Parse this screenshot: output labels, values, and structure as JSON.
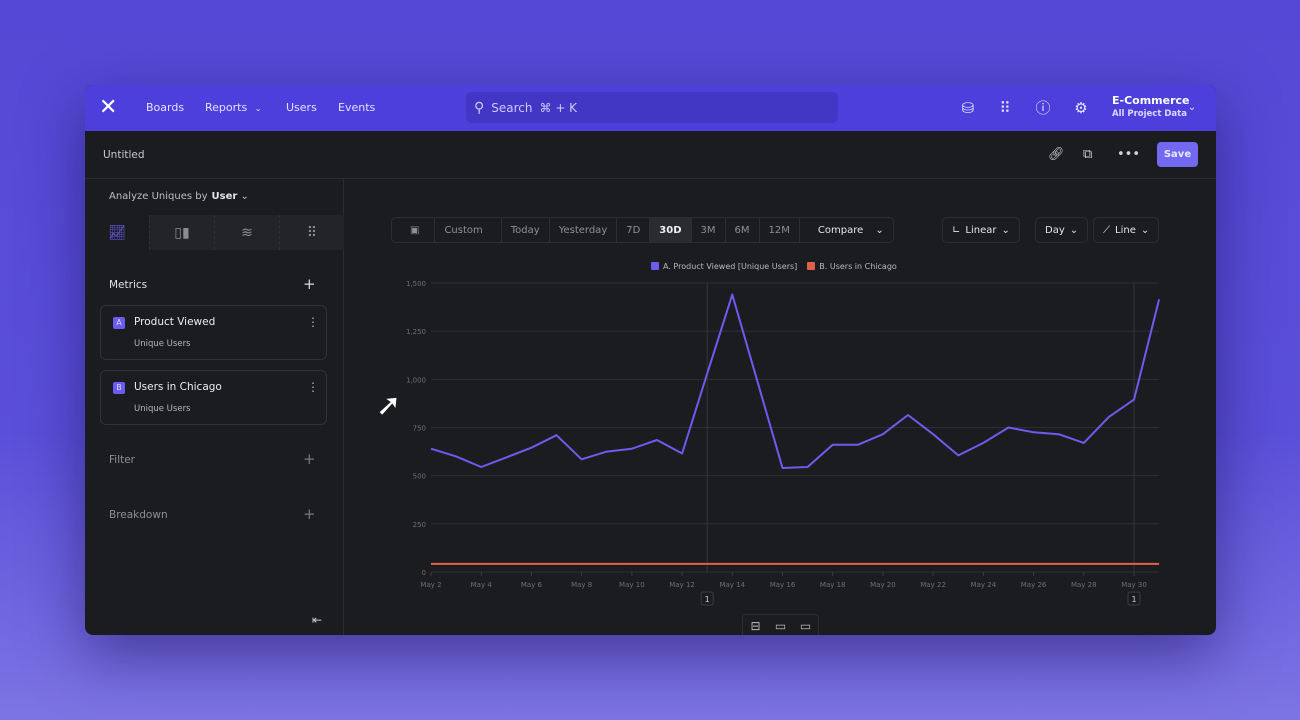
{
  "header": {
    "nav": [
      {
        "label": "Boards"
      },
      {
        "label": "Reports"
      },
      {
        "label": "Users"
      },
      {
        "label": "Events"
      }
    ],
    "search_placeholder": "Search",
    "search_shortcut": "⌘ + K",
    "project": {
      "name": "E-Commerce",
      "scope": "All Project Data"
    }
  },
  "report": {
    "title": "Untitled",
    "save_label": "Save"
  },
  "sidebar": {
    "analyze_label": "Analyze Uniques by",
    "analyze_value": "User",
    "metrics_label": "Metrics",
    "metrics": [
      {
        "letter": "A",
        "name": "Product Viewed",
        "measure": "Unique Users"
      },
      {
        "letter": "B",
        "name": "Users in Chicago",
        "measure": "Unique Users"
      }
    ],
    "filter_label": "Filter",
    "breakdown_label": "Breakdown"
  },
  "toolbar": {
    "custom": "Custom",
    "ranges": [
      "Today",
      "Yesterday",
      "7D",
      "30D",
      "3M",
      "6M",
      "12M"
    ],
    "selected_range": "30D",
    "compare": "Compare",
    "scale": "Linear",
    "interval": "Day",
    "chart_type": "Line"
  },
  "chart_data": {
    "type": "line",
    "x": [
      "May 1",
      "May 2",
      "May 3",
      "May 4",
      "May 5",
      "May 6",
      "May 7",
      "May 8",
      "May 9",
      "May 10",
      "May 11",
      "May 12",
      "May 13",
      "May 14",
      "May 15",
      "May 16",
      "May 17",
      "May 18",
      "May 19",
      "May 20",
      "May 21",
      "May 22",
      "May 23",
      "May 24",
      "May 25",
      "May 26",
      "May 27",
      "May 28",
      "May 29",
      "May 30",
      "May 31"
    ],
    "x_tick_labels": [
      "May 2",
      "May 4",
      "May 6",
      "May 8",
      "May 10",
      "May 12",
      "May 14",
      "May 16",
      "May 18",
      "May 20",
      "May 22",
      "May 24",
      "May 26",
      "May 28",
      "May 30"
    ],
    "y_tick_labels": [
      "0",
      "250",
      "500",
      "750",
      "1,000",
      "1,250",
      "1,500"
    ],
    "ylim": [
      0,
      1500
    ],
    "grid": true,
    "legend": "top-center",
    "series": [
      {
        "name": "A. Product Viewed [Unique Users]",
        "color": "#6b5cf0",
        "values": [
          null,
          640,
          600,
          545,
          595,
          645,
          710,
          585,
          625,
          640,
          685,
          615,
          1030,
          1440,
          990,
          540,
          545,
          660,
          660,
          715,
          815,
          715,
          605,
          670,
          750,
          725,
          715,
          670,
          805,
          895,
          1415
        ]
      },
      {
        "name": "B. Users in Chicago",
        "color": "#e0604a",
        "values": [
          null,
          42,
          42,
          42,
          42,
          42,
          42,
          42,
          42,
          42,
          42,
          42,
          42,
          42,
          42,
          42,
          42,
          42,
          42,
          42,
          42,
          42,
          42,
          42,
          42,
          42,
          42,
          42,
          42,
          42,
          42
        ]
      }
    ],
    "annotations": [
      {
        "x": "May 13",
        "label": "1"
      },
      {
        "x": "May 30",
        "label": "1"
      }
    ]
  }
}
